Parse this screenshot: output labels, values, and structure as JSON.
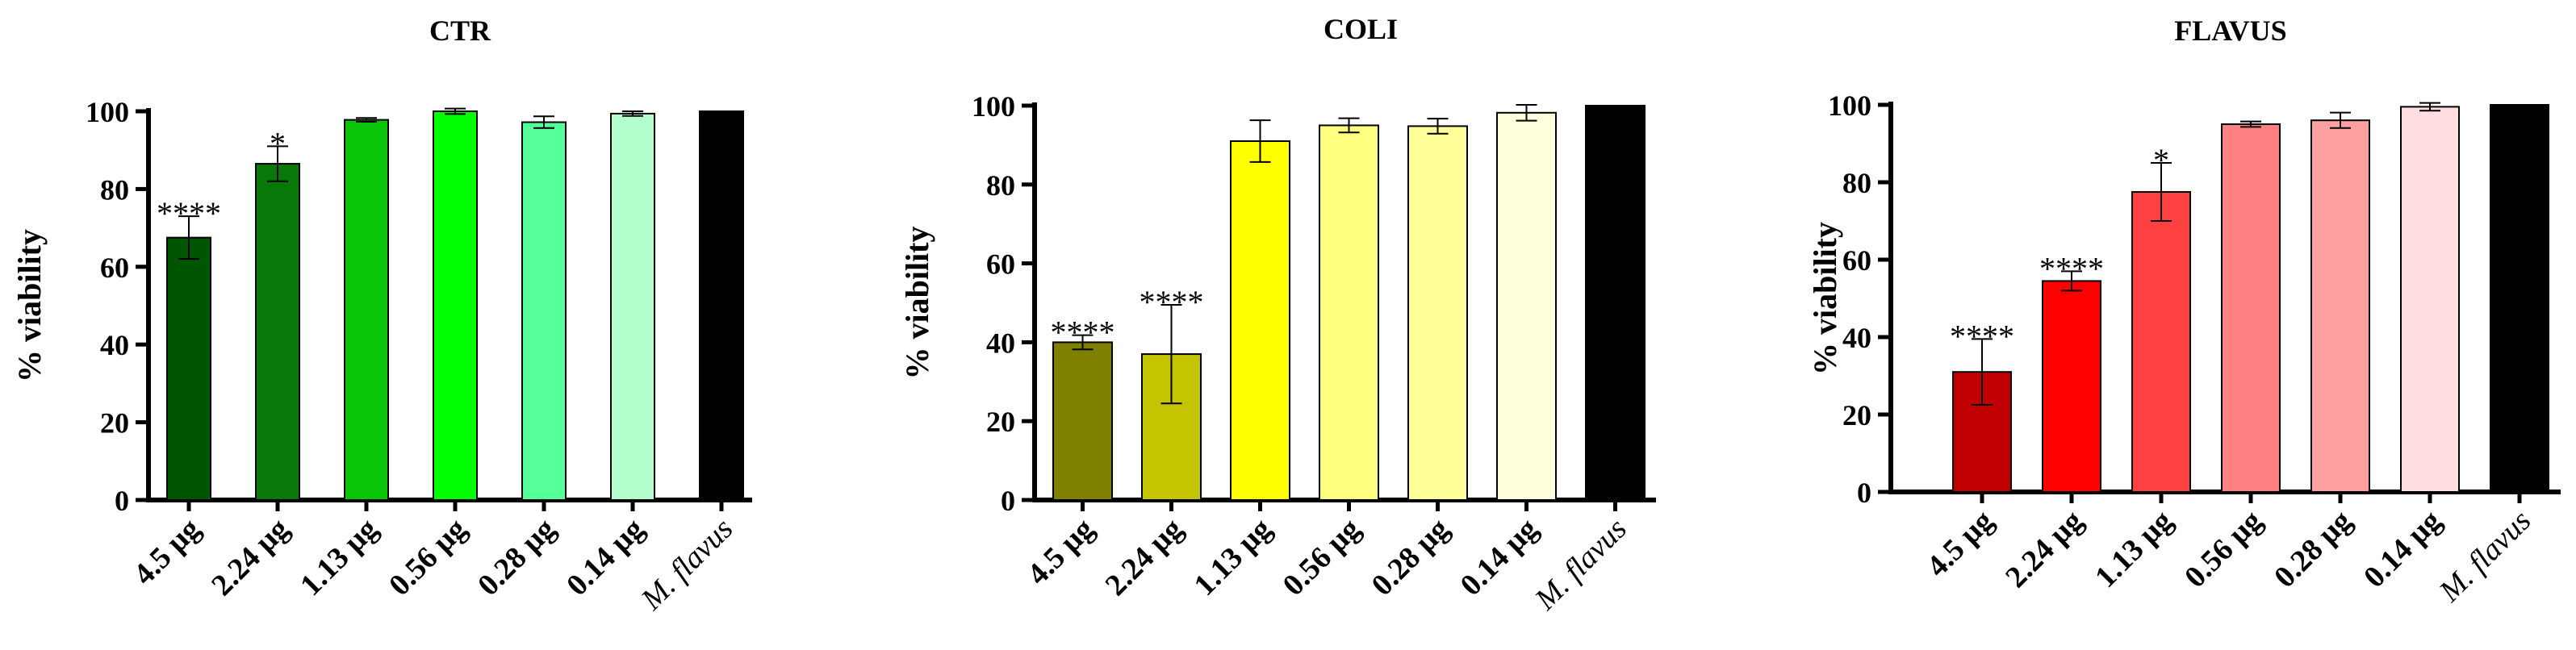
{
  "chart_data": [
    {
      "type": "bar",
      "title": "CTR",
      "xlabel": "",
      "ylabel": "% viability",
      "ylim": [
        0,
        100
      ],
      "yticks": [
        "0",
        "20",
        "40",
        "60",
        "80",
        "100"
      ],
      "categories": [
        "4.5 µg",
        "2.24 µg",
        "1.13 µg",
        "0.56 µg",
        "0.28 µg",
        "0.14 µg",
        "M. flavus"
      ],
      "values": [
        67.5,
        86.5,
        97.8,
        100.0,
        97.2,
        99.4,
        100
      ],
      "errors": [
        5.5,
        4.5,
        0.5,
        0.7,
        1.5,
        0.6,
        0
      ],
      "significance": [
        "****",
        "*",
        "",
        "",
        "",
        "",
        ""
      ],
      "colors": [
        "#005500",
        "#087808",
        "#0ac40a",
        "#00ff00",
        "#55ff99",
        "#b3ffcc",
        "#000000"
      ]
    },
    {
      "type": "bar",
      "title": "COLI",
      "xlabel": "",
      "ylabel": "% viability",
      "ylim": [
        0,
        100
      ],
      "yticks": [
        "0",
        "20",
        "40",
        "60",
        "80",
        "100"
      ],
      "categories": [
        "4.5 µg",
        "2.24 µg",
        "1.13 µg",
        "0.56 µg",
        "0.28 µg",
        "0.14 µg",
        "M. flavus"
      ],
      "values": [
        40.0,
        37.0,
        91.0,
        95.0,
        94.8,
        98.2,
        100
      ],
      "errors": [
        1.8,
        12.5,
        5.3,
        1.8,
        1.9,
        2.0,
        0
      ],
      "significance": [
        "****",
        "****",
        "",
        "",
        "",
        "",
        ""
      ],
      "colors": [
        "#7f7f00",
        "#c4c400",
        "#ffff00",
        "#ffff80",
        "#ffff99",
        "#ffffdd",
        "#000000"
      ]
    },
    {
      "type": "bar",
      "title": "FLAVUS",
      "xlabel": "",
      "ylabel": "% viability",
      "ylim": [
        0,
        100
      ],
      "yticks": [
        "0",
        "20",
        "40",
        "60",
        "80",
        "100"
      ],
      "categories": [
        "4.5 µg",
        "2.24 µg",
        "1.13 µg",
        "0.56 µg",
        "0.28 µg",
        "0.14 µg",
        "M. flavus"
      ],
      "values": [
        31.0,
        54.5,
        77.5,
        95.0,
        96.0,
        99.5,
        100
      ],
      "errors": [
        8.5,
        2.5,
        7.5,
        0.7,
        2.0,
        1.0,
        0
      ],
      "significance": [
        "****",
        "****",
        "*",
        "",
        "",
        "",
        ""
      ],
      "colors": [
        "#c00000",
        "#ff0000",
        "#ff4040",
        "#ff8080",
        "#ffa0a0",
        "#ffdde0",
        "#000000"
      ]
    }
  ]
}
